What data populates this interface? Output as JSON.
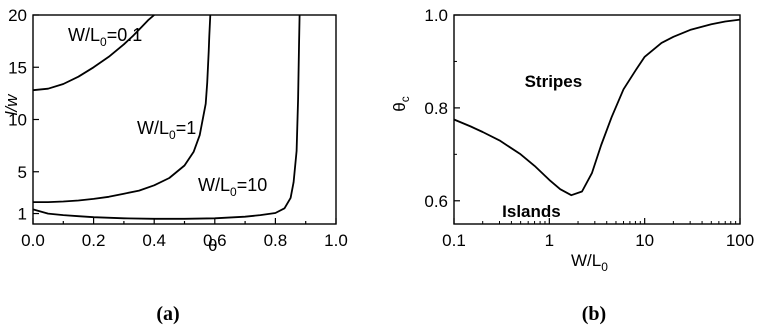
{
  "chart_data": [
    {
      "type": "line",
      "panel_label": "(a)",
      "xlabel": "θ",
      "ylabel": "l/w",
      "xlim": [
        0.0,
        1.0
      ],
      "ylim": [
        0.0,
        20.0
      ],
      "xticks": [
        "0.0",
        "0.2",
        "0.4",
        "0.6",
        "0.8",
        "1.0"
      ],
      "yticks": [
        "1",
        "5",
        "10",
        "15",
        "20"
      ],
      "ytick_values": [
        1,
        5,
        10,
        15,
        20
      ],
      "xtick_values": [
        0.0,
        0.2,
        0.4,
        0.6,
        0.8,
        1.0
      ],
      "series": [
        {
          "label_main": "W/L",
          "label_sub": "0",
          "label_tail": "=0.1",
          "x": [
            0.0,
            0.05,
            0.1,
            0.15,
            0.2,
            0.25,
            0.3,
            0.33,
            0.36,
            0.38,
            0.4
          ],
          "y": [
            12.8,
            12.95,
            13.4,
            14.1,
            15.0,
            16.0,
            17.2,
            18.0,
            18.9,
            19.5,
            20.0
          ]
        },
        {
          "label_main": "W/L",
          "label_sub": "0",
          "label_tail": "=1",
          "x": [
            0.0,
            0.05,
            0.1,
            0.15,
            0.2,
            0.25,
            0.3,
            0.35,
            0.4,
            0.45,
            0.5,
            0.53,
            0.55,
            0.57,
            0.575,
            0.58,
            0.582,
            0.585
          ],
          "y": [
            2.1,
            2.1,
            2.15,
            2.25,
            2.4,
            2.6,
            2.9,
            3.2,
            3.7,
            4.4,
            5.6,
            6.9,
            8.5,
            11.5,
            13.5,
            16.5,
            18.0,
            20.0
          ]
        },
        {
          "label_main": "W/L",
          "label_sub": "0",
          "label_tail": "=10",
          "x": [
            0.0,
            0.05,
            0.1,
            0.15,
            0.2,
            0.3,
            0.4,
            0.5,
            0.6,
            0.7,
            0.75,
            0.8,
            0.83,
            0.85,
            0.86,
            0.87,
            0.875,
            0.878,
            0.88
          ],
          "y": [
            1.4,
            1.0,
            0.85,
            0.75,
            0.65,
            0.55,
            0.5,
            0.5,
            0.55,
            0.7,
            0.85,
            1.05,
            1.5,
            2.5,
            4.0,
            7.0,
            12.0,
            17.0,
            20.0
          ]
        }
      ]
    },
    {
      "type": "line",
      "panel_label": "(b)",
      "xlabel_main": "W/L",
      "xlabel_sub": "0",
      "ylabel_main": "θ",
      "ylabel_sub": "c",
      "xscale": "log",
      "xlim": [
        0.1,
        100
      ],
      "ylim": [
        0.55,
        1.0
      ],
      "xticks": [
        "0.1",
        "1",
        "10",
        "100"
      ],
      "xtick_values": [
        0.1,
        1,
        10,
        100
      ],
      "yticks": [
        "0.6",
        "0.8",
        "1.0"
      ],
      "ytick_values": [
        0.6,
        0.8,
        1.0
      ],
      "annotations": [
        {
          "text": "Stripes",
          "x": 0.55,
          "y": 0.845
        },
        {
          "text": "Islands",
          "x": 0.32,
          "y": 0.565
        }
      ],
      "series": [
        {
          "x": [
            0.1,
            0.15,
            0.2,
            0.3,
            0.5,
            0.7,
            1.0,
            1.3,
            1.7,
            2.2,
            2.8,
            3.5,
            4.5,
            6,
            8,
            10,
            15,
            20,
            30,
            50,
            70,
            100
          ],
          "y": [
            0.775,
            0.76,
            0.748,
            0.73,
            0.7,
            0.675,
            0.645,
            0.625,
            0.612,
            0.62,
            0.66,
            0.72,
            0.78,
            0.84,
            0.88,
            0.91,
            0.94,
            0.953,
            0.968,
            0.98,
            0.986,
            0.99
          ]
        }
      ]
    }
  ]
}
